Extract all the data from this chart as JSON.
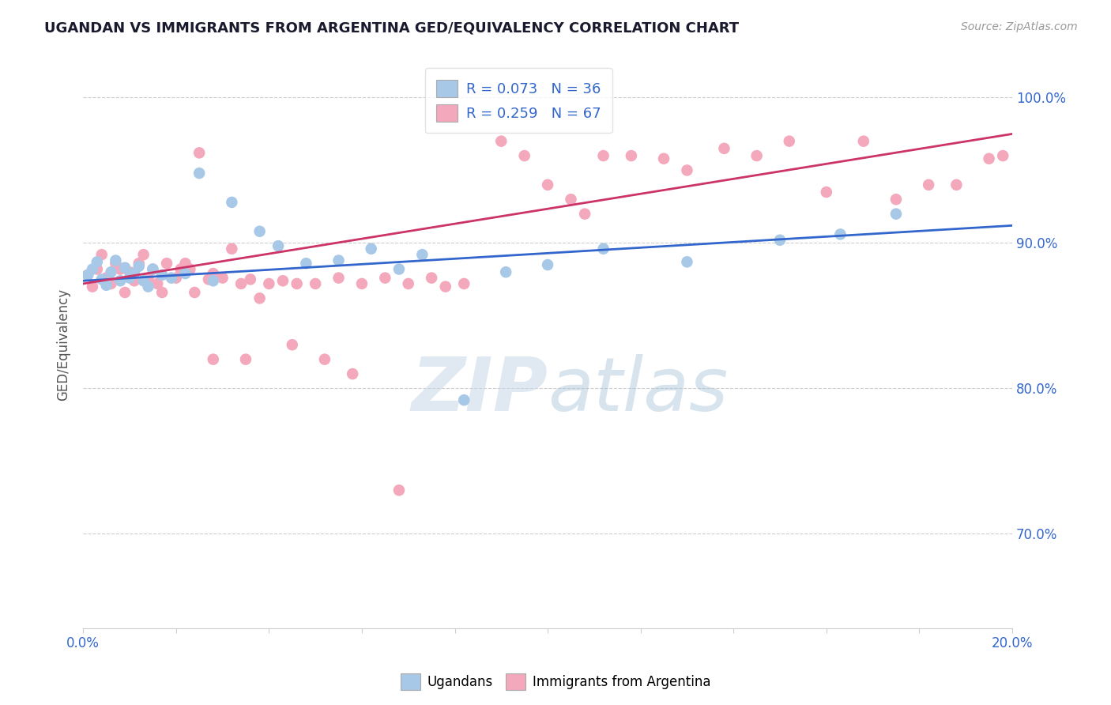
{
  "title": "UGANDAN VS IMMIGRANTS FROM ARGENTINA GED/EQUIVALENCY CORRELATION CHART",
  "source": "Source: ZipAtlas.com",
  "ylabel": "GED/Equivalency",
  "xlim": [
    0.0,
    0.2
  ],
  "ylim": [
    0.635,
    1.025
  ],
  "blue_R": 0.073,
  "blue_N": 36,
  "pink_R": 0.259,
  "pink_N": 67,
  "blue_color": "#a8c8e8",
  "pink_color": "#f4a8bc",
  "blue_line_color": "#3366cc",
  "pink_line_color": "#cc3366",
  "blue_line_x": [
    0.0,
    0.2
  ],
  "blue_line_y": [
    0.874,
    0.912
  ],
  "pink_line_x": [
    0.0,
    0.2
  ],
  "pink_line_y": [
    0.872,
    0.975
  ],
  "watermark_zip": "ZIP",
  "watermark_atlas": "atlas",
  "blue_scatter_x": [
    0.001,
    0.002,
    0.003,
    0.004,
    0.005,
    0.006,
    0.007,
    0.008,
    0.009,
    0.01,
    0.011,
    0.012,
    0.013,
    0.014,
    0.015,
    0.017,
    0.019,
    0.022,
    0.025,
    0.028,
    0.032,
    0.038,
    0.042,
    0.048,
    0.055,
    0.062,
    0.068,
    0.073,
    0.082,
    0.091,
    0.1,
    0.112,
    0.13,
    0.15,
    0.163,
    0.175
  ],
  "blue_scatter_y": [
    0.878,
    0.882,
    0.887,
    0.875,
    0.871,
    0.88,
    0.888,
    0.874,
    0.883,
    0.876,
    0.879,
    0.884,
    0.874,
    0.87,
    0.882,
    0.878,
    0.876,
    0.879,
    0.948,
    0.874,
    0.928,
    0.908,
    0.898,
    0.886,
    0.888,
    0.896,
    0.882,
    0.892,
    0.792,
    0.88,
    0.885,
    0.896,
    0.887,
    0.902,
    0.906,
    0.92
  ],
  "pink_scatter_x": [
    0.001,
    0.002,
    0.003,
    0.004,
    0.005,
    0.006,
    0.007,
    0.008,
    0.009,
    0.01,
    0.011,
    0.012,
    0.013,
    0.014,
    0.015,
    0.016,
    0.017,
    0.018,
    0.02,
    0.021,
    0.022,
    0.023,
    0.024,
    0.025,
    0.027,
    0.028,
    0.03,
    0.032,
    0.034,
    0.036,
    0.038,
    0.04,
    0.043,
    0.046,
    0.05,
    0.055,
    0.06,
    0.065,
    0.07,
    0.075,
    0.078,
    0.082,
    0.09,
    0.095,
    0.1,
    0.105,
    0.108,
    0.112,
    0.118,
    0.125,
    0.13,
    0.138,
    0.145,
    0.152,
    0.16,
    0.168,
    0.175,
    0.182,
    0.188,
    0.195,
    0.198,
    0.028,
    0.035,
    0.045,
    0.052,
    0.058,
    0.068
  ],
  "pink_scatter_y": [
    0.878,
    0.87,
    0.882,
    0.892,
    0.876,
    0.872,
    0.886,
    0.882,
    0.866,
    0.88,
    0.874,
    0.886,
    0.892,
    0.876,
    0.882,
    0.872,
    0.866,
    0.886,
    0.876,
    0.882,
    0.886,
    0.882,
    0.866,
    0.962,
    0.875,
    0.879,
    0.876,
    0.896,
    0.872,
    0.875,
    0.862,
    0.872,
    0.874,
    0.872,
    0.872,
    0.876,
    0.872,
    0.876,
    0.872,
    0.876,
    0.87,
    0.872,
    0.97,
    0.96,
    0.94,
    0.93,
    0.92,
    0.96,
    0.96,
    0.958,
    0.95,
    0.965,
    0.96,
    0.97,
    0.935,
    0.97,
    0.93,
    0.94,
    0.94,
    0.958,
    0.96,
    0.82,
    0.82,
    0.83,
    0.82,
    0.81,
    0.73
  ]
}
